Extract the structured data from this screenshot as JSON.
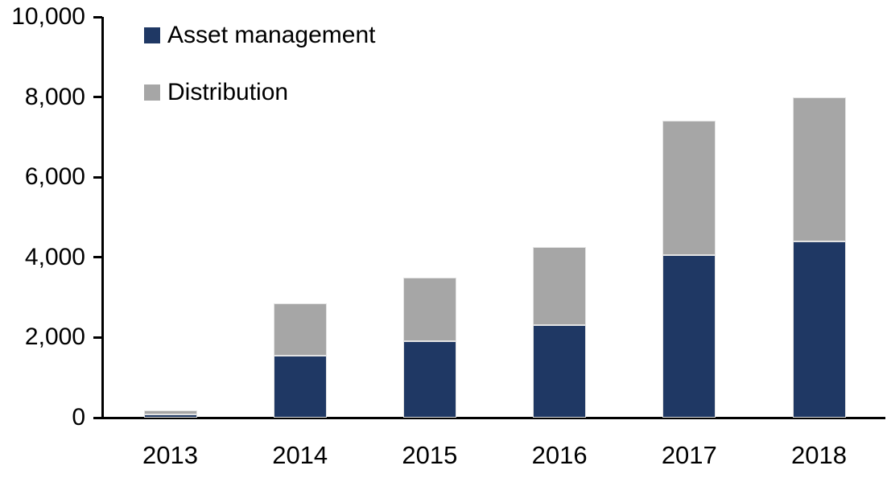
{
  "chart_data": {
    "type": "bar",
    "stacked": true,
    "title": "",
    "xlabel": "",
    "ylabel": "",
    "categories": [
      "2013",
      "2014",
      "2015",
      "2016",
      "2017",
      "2018"
    ],
    "series": [
      {
        "name": "Asset management",
        "color": "#1F3864",
        "values": [
          90,
          1550,
          1900,
          2300,
          4050,
          4400
        ]
      },
      {
        "name": "Distribution",
        "color": "#A6A6A6",
        "values": [
          90,
          1300,
          1600,
          1950,
          3350,
          3600
        ]
      }
    ],
    "ylim": [
      0,
      10000
    ],
    "yticks": [
      0,
      2000,
      4000,
      6000,
      8000,
      10000
    ],
    "ytick_labels": [
      "0",
      "2,000",
      "4,000",
      "6,000",
      "8,000",
      "10,000"
    ],
    "grid": false,
    "legend_position": "top-left-inside",
    "axis_color": "#000000",
    "text_color": "#000000",
    "background_color": "#ffffff"
  }
}
